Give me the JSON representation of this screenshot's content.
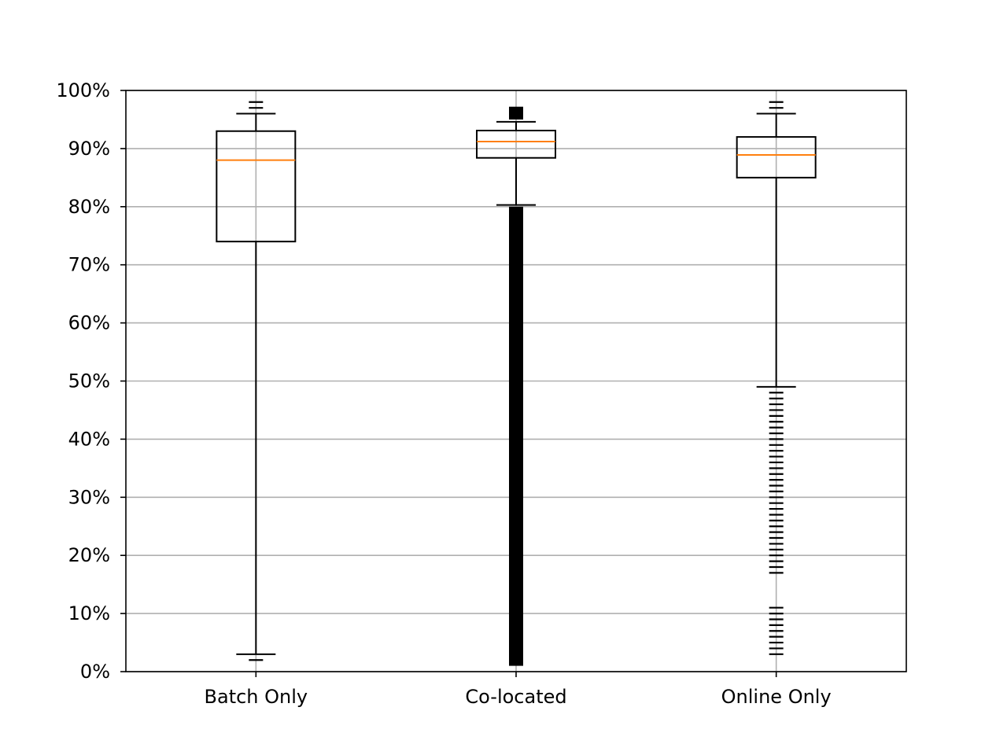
{
  "chart_data": {
    "type": "box",
    "title": "",
    "xlabel": "",
    "ylabel": "",
    "ylim": [
      0,
      100
    ],
    "y_ticks": [
      0,
      10,
      20,
      30,
      40,
      50,
      60,
      70,
      80,
      90,
      100
    ],
    "y_tick_labels": [
      "0%",
      "10%",
      "20%",
      "30%",
      "40%",
      "50%",
      "60%",
      "70%",
      "80%",
      "90%",
      "100%"
    ],
    "grid": true,
    "categories": [
      "Batch Only",
      "Co-located",
      "Online Only"
    ],
    "boxes": [
      {
        "category": "Batch Only",
        "whisker_low": 3,
        "q1": 74,
        "median": 88,
        "q3": 93,
        "whisker_high": 96,
        "outliers": [
          2,
          97,
          98
        ]
      },
      {
        "category": "Co-located",
        "whisker_low": 80.3,
        "q1": 88.4,
        "median": 91.2,
        "q3": 93.1,
        "whisker_high": 94.6,
        "outliers": [],
        "outlier_bands": [
          [
            1,
            80
          ],
          [
            95,
            97.2
          ]
        ]
      },
      {
        "category": "Online Only",
        "whisker_low": 49,
        "q1": 85,
        "median": 88.9,
        "q3": 92,
        "whisker_high": 96,
        "outliers": [
          3,
          4,
          5,
          6,
          7,
          8,
          9,
          10,
          11,
          17,
          18,
          19,
          20,
          21,
          22,
          23,
          24,
          25,
          26,
          27,
          28,
          29,
          30,
          31,
          32,
          33,
          34,
          35,
          36,
          37,
          38,
          39,
          40,
          41,
          42,
          43,
          44,
          45,
          46,
          47,
          48,
          97,
          98
        ]
      }
    ],
    "colors": {
      "box": "#000000",
      "median": "#ff7f0e",
      "grid": "#b0b0b0",
      "outlier": "#000000"
    }
  }
}
